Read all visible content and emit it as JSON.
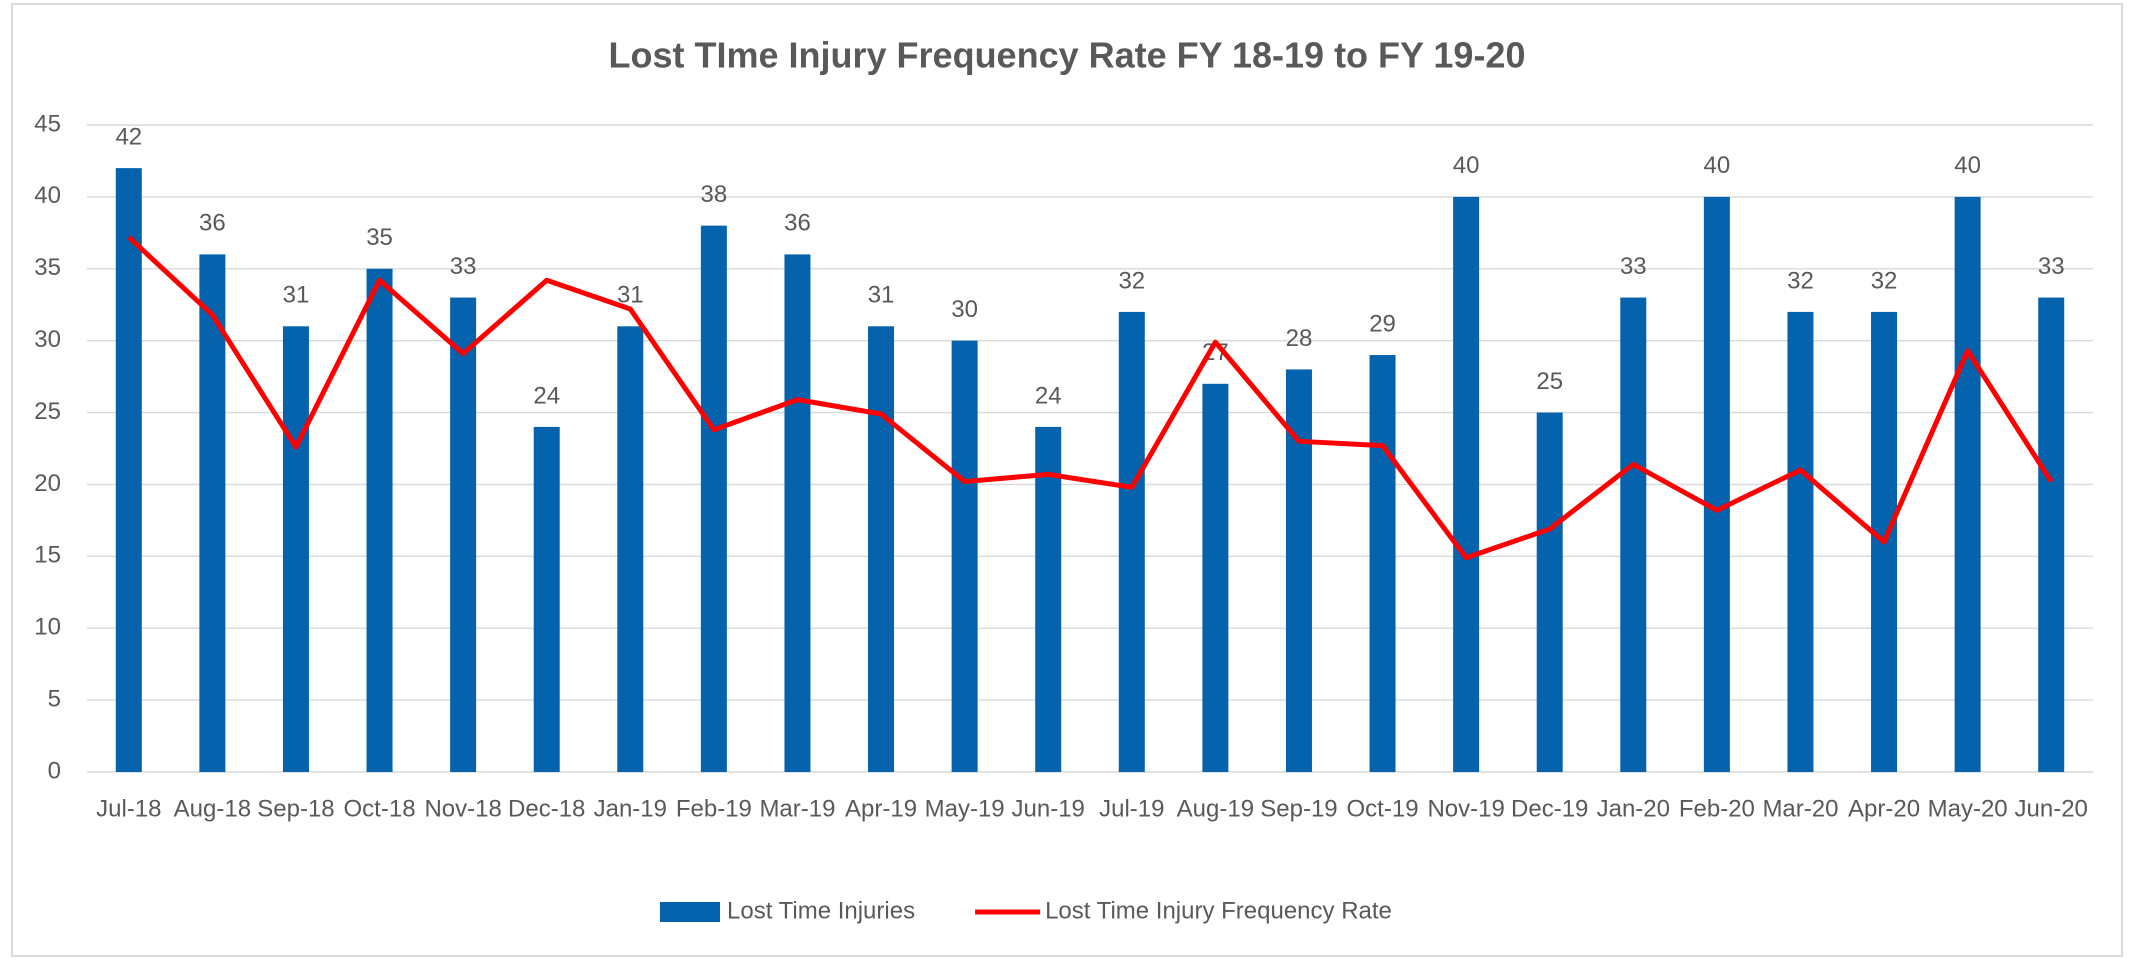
{
  "chart_data": {
    "type": "bar-line",
    "title": "Lost TIme Injury Frequency Rate FY 18-19 to FY 19-20",
    "categories": [
      "Jul-18",
      "Aug-18",
      "Sep-18",
      "Oct-18",
      "Nov-18",
      "Dec-18",
      "Jan-19",
      "Feb-19",
      "Mar-19",
      "Apr-19",
      "May-19",
      "Jun-19",
      "Jul-19",
      "Aug-19",
      "Sep-19",
      "Oct-19",
      "Nov-19",
      "Dec-19",
      "Jan-20",
      "Feb-20",
      "Mar-20",
      "Apr-20",
      "May-20",
      "Jun-20"
    ],
    "series": [
      {
        "name": "Lost Time Injuries",
        "type": "bar",
        "color": "#0563ae",
        "values": [
          42,
          36,
          31,
          35,
          33,
          24,
          31,
          38,
          36,
          31,
          30,
          24,
          32,
          27,
          28,
          29,
          40,
          25,
          33,
          40,
          32,
          32,
          40,
          33
        ]
      },
      {
        "name": "Lost Time Injury Frequency Rate",
        "type": "line",
        "color": "#ff0000",
        "values": [
          37.2,
          31.8,
          22.6,
          34.2,
          29.1,
          34.2,
          32.2,
          23.8,
          25.9,
          24.9,
          20.2,
          20.7,
          19.8,
          29.9,
          23.0,
          22.7,
          14.9,
          16.9,
          21.4,
          18.2,
          21.0,
          16.0,
          29.3,
          20.2
        ]
      }
    ],
    "ylim": [
      0,
      45
    ],
    "yticks": [
      0,
      5,
      10,
      15,
      20,
      25,
      30,
      35,
      40,
      45
    ],
    "grid": true,
    "legend": "bottom"
  }
}
